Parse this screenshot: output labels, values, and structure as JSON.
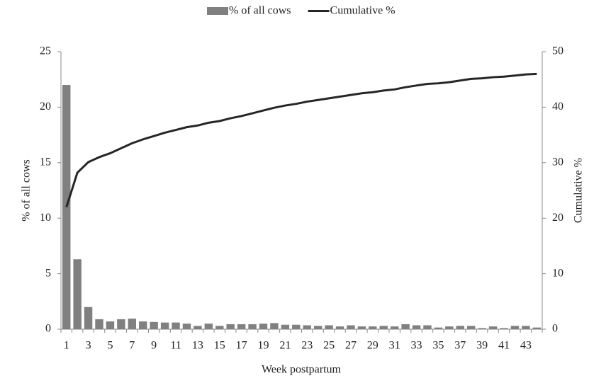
{
  "chart_data": {
    "type": "bar",
    "xlabel": "Week postpartum",
    "ylabel": "% of all cows",
    "y2label": "Cumulative %",
    "categories": [
      1,
      null,
      3,
      null,
      5,
      null,
      7,
      null,
      9,
      null,
      11,
      null,
      13,
      null,
      15,
      null,
      17,
      null,
      19,
      null,
      21,
      null,
      23,
      null,
      25,
      null,
      27,
      null,
      29,
      null,
      31,
      null,
      33,
      null,
      35,
      null,
      37,
      null,
      39,
      null,
      41,
      null,
      43,
      null
    ],
    "series": [
      {
        "name": "% of all cows",
        "type": "bar",
        "axis": "y",
        "color": "#808080",
        "values": [
          22,
          6.3,
          2.0,
          0.9,
          0.7,
          0.9,
          0.95,
          0.7,
          0.65,
          0.6,
          0.6,
          0.5,
          0.3,
          0.5,
          0.3,
          0.45,
          0.45,
          0.45,
          0.5,
          0.55,
          0.4,
          0.4,
          0.35,
          0.3,
          0.35,
          0.25,
          0.35,
          0.25,
          0.25,
          0.3,
          0.25,
          0.45,
          0.35,
          0.35,
          0.15,
          0.25,
          0.3,
          0.3,
          0.1,
          0.25,
          0.1,
          0.3,
          0.3,
          0.15
        ]
      },
      {
        "name": "Cumulative %",
        "type": "line",
        "axis": "y2",
        "color": "#262626",
        "values": [
          22,
          28.2,
          30.1,
          31,
          31.7,
          32.6,
          33.5,
          34.2,
          34.8,
          35.4,
          35.9,
          36.4,
          36.7,
          37.2,
          37.5,
          38,
          38.4,
          38.9,
          39.4,
          39.9,
          40.3,
          40.6,
          41,
          41.3,
          41.6,
          41.9,
          42.2,
          42.5,
          42.7,
          43,
          43.2,
          43.6,
          43.9,
          44.2,
          44.3,
          44.5,
          44.8,
          45.1,
          45.2,
          45.4,
          45.5,
          45.7,
          45.9,
          46
        ]
      }
    ],
    "ylim": [
      0,
      25
    ],
    "yticks": [
      0,
      5,
      10,
      15,
      20,
      25
    ],
    "y2lim": [
      0,
      50
    ],
    "y2ticks": [
      0,
      10,
      20,
      30,
      40,
      50
    ],
    "legend": "top"
  }
}
